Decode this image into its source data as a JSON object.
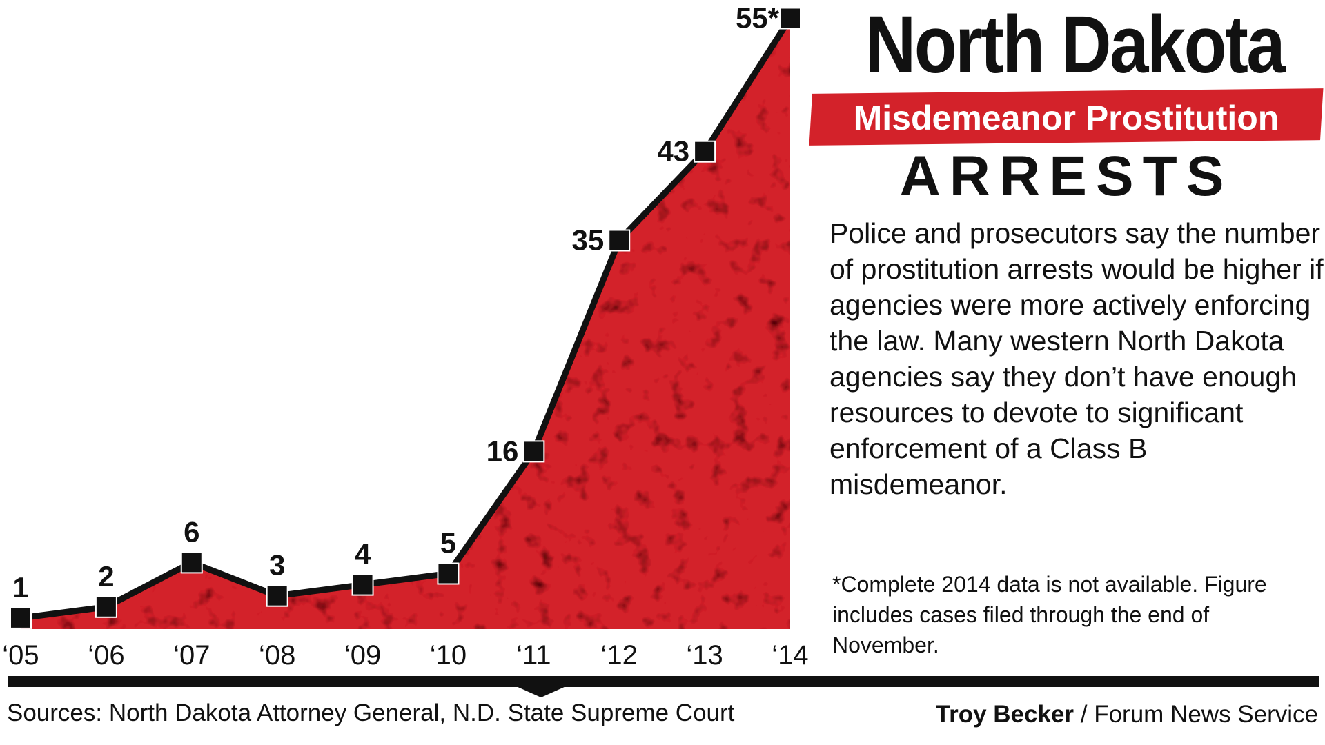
{
  "header": {
    "title": "North Dakota",
    "banner": "Misdemeanor Prostitution",
    "subtitle": "ARRESTS"
  },
  "description": "Police and prosecutors say the number of prostitution arrests would be higher if agencies were more actively enforcing the law. Many western North Dakota agencies say they don’t have enough resources to devote to significant enforcement of a Class B misdemeanor.",
  "footnote": "*Complete 2014 data is not available. Figure includes cases filed through the end of November.",
  "footer": {
    "sources": "Sources: North Dakota Attorney General, N.D. State Supreme Court",
    "credit_name": "Troy Becker",
    "credit_org": " / Forum News Service"
  },
  "colors": {
    "fill": "#d3222a",
    "line": "#111111",
    "marker": "#111111"
  },
  "chart_data": {
    "type": "area",
    "title": "Misdemeanor Prostitution ARRESTS",
    "categories": [
      "‘05",
      "‘06",
      "‘07",
      "‘08",
      "‘09",
      "‘10",
      "‘11",
      "‘12",
      "‘13",
      "‘14"
    ],
    "values": [
      1,
      2,
      6,
      3,
      4,
      5,
      16,
      35,
      43,
      55
    ],
    "data_labels": [
      "1",
      "2",
      "6",
      "3",
      "4",
      "5",
      "16",
      "35",
      "43",
      "55*"
    ],
    "xlabel": "",
    "ylabel": "",
    "ylim": [
      0,
      56
    ],
    "grid": false,
    "legend": "none"
  }
}
